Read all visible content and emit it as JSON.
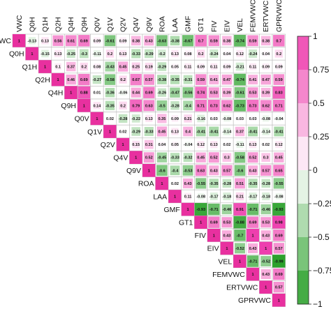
{
  "chart_data": {
    "type": "heatmap",
    "subtype": "correlation-matrix-upper-triangle",
    "variables": [
      "VWC",
      "Q0H",
      "Q1H",
      "Q2H",
      "Q4H",
      "Q9H",
      "Q0V",
      "Q1V",
      "Q2V",
      "Q4V",
      "Q9V",
      "ROA",
      "LAA",
      "GMF",
      "GT1",
      "FIV",
      "EIV",
      "VEL",
      "FEMVWC",
      "ERTVWC",
      "GPRVWC"
    ],
    "matrix": [
      [
        1,
        -0.13,
        0.13,
        0.56,
        0.61,
        0.69,
        0.09,
        -0.61,
        0.09,
        0.38,
        0.43,
        -0.63,
        -0.38,
        -0.67,
        0.7,
        0.59,
        0.38,
        -0.74,
        0.59,
        0.38,
        0.7
      ],
      [
        null,
        1,
        -0.15,
        0.13,
        -0.25,
        -0.3,
        -0.11,
        0.2,
        0.13,
        -0.33,
        -0.29,
        -0.2,
        0.13,
        0.08,
        0.2,
        -0.24,
        0.04,
        0.12,
        -0.24,
        0.04,
        0.2
      ],
      [
        null,
        null,
        1,
        0.1,
        0.37,
        0.2,
        0.08,
        -0.43,
        0.45,
        0.25,
        0.19,
        -0.29,
        0.05,
        0.11,
        0.09,
        0.11,
        0.09,
        -0.21,
        0.11,
        0.09,
        0.09
      ],
      [
        null,
        null,
        null,
        1,
        0.46,
        0.69,
        -0.27,
        -0.58,
        0.2,
        0.67,
        0.57,
        -0.38,
        -0.35,
        -0.31,
        0.59,
        0.41,
        0.47,
        -0.74,
        0.41,
        0.47,
        0.59
      ],
      [
        null,
        null,
        null,
        null,
        1,
        0.88,
        0.01,
        -0.36,
        -0.06,
        0.44,
        0.69,
        -0.26,
        -0.47,
        -0.56,
        0.74,
        0.53,
        0.39,
        -0.61,
        0.53,
        0.39,
        0.83
      ],
      [
        null,
        null,
        null,
        null,
        null,
        1,
        0.14,
        -0.35,
        0.2,
        0.79,
        0.63,
        -0.5,
        -0.28,
        -0.4,
        0.71,
        0.73,
        0.62,
        -0.73,
        0.73,
        0.62,
        0.71
      ],
      [
        null,
        null,
        null,
        null,
        null,
        null,
        1,
        0.02,
        -0.28,
        -0.22,
        0.13,
        0.35,
        0.09,
        0.21,
        -0.16,
        0.03,
        -0.08,
        0.03,
        0.03,
        -0.08,
        -0.04
      ],
      [
        null,
        null,
        null,
        null,
        null,
        null,
        null,
        1,
        0.02,
        -0.29,
        -0.33,
        0.45,
        0.13,
        0.4,
        -0.41,
        -0.41,
        -0.14,
        0.37,
        -0.41,
        -0.14,
        -0.41
      ],
      [
        null,
        null,
        null,
        null,
        null,
        null,
        null,
        null,
        1,
        0.15,
        0.31,
        0.04,
        0.05,
        -0.04,
        0.12,
        0.13,
        0.02,
        -0.11,
        0.13,
        0.02,
        0.12
      ],
      [
        null,
        null,
        null,
        null,
        null,
        null,
        null,
        null,
        null,
        1,
        0.52,
        -0.45,
        -0.33,
        -0.32,
        0.45,
        0.52,
        0.3,
        -0.58,
        0.52,
        0.3,
        0.45
      ],
      [
        null,
        null,
        null,
        null,
        null,
        null,
        null,
        null,
        null,
        null,
        1,
        -0.6,
        -0.4,
        -0.53,
        0.63,
        0.43,
        0.57,
        -0.6,
        0.43,
        0.57,
        0.65
      ],
      [
        null,
        null,
        null,
        null,
        null,
        null,
        null,
        null,
        null,
        null,
        null,
        1,
        0.02,
        0.43,
        -0.55,
        -0.35,
        -0.28,
        0.51,
        -0.35,
        -0.28,
        -0.55
      ],
      [
        null,
        null,
        null,
        null,
        null,
        null,
        null,
        null,
        null,
        null,
        null,
        null,
        1,
        0.11,
        -0.08,
        -0.17,
        -0.18,
        0.21,
        -0.17,
        -0.18,
        -0.08
      ],
      [
        null,
        null,
        null,
        null,
        null,
        null,
        null,
        null,
        null,
        null,
        null,
        null,
        null,
        1,
        -0.93,
        -0.71,
        -0.46,
        0.91,
        -0.71,
        -0.46,
        -0.93
      ],
      [
        null,
        null,
        null,
        null,
        null,
        null,
        null,
        null,
        null,
        null,
        null,
        null,
        null,
        null,
        1,
        0.69,
        0.53,
        -0.88,
        0.69,
        0.53,
        0.98
      ],
      [
        null,
        null,
        null,
        null,
        null,
        null,
        null,
        null,
        null,
        null,
        null,
        null,
        null,
        null,
        null,
        1,
        0.43,
        -0.7,
        1,
        0.43,
        0.69
      ],
      [
        null,
        null,
        null,
        null,
        null,
        null,
        null,
        null,
        null,
        null,
        null,
        null,
        null,
        null,
        null,
        null,
        1,
        -0.52,
        0.43,
        1,
        0.57
      ],
      [
        null,
        null,
        null,
        null,
        null,
        null,
        null,
        null,
        null,
        null,
        null,
        null,
        null,
        null,
        null,
        null,
        null,
        1,
        -0.71,
        -0.52,
        -0.99
      ],
      [
        null,
        null,
        null,
        null,
        null,
        null,
        null,
        null,
        null,
        null,
        null,
        null,
        null,
        null,
        null,
        null,
        null,
        null,
        1,
        0.43,
        0.69
      ],
      [
        null,
        null,
        null,
        null,
        null,
        null,
        null,
        null,
        null,
        null,
        null,
        null,
        null,
        null,
        null,
        null,
        null,
        null,
        null,
        1,
        0.57
      ],
      [
        null,
        null,
        null,
        null,
        null,
        null,
        null,
        null,
        null,
        null,
        null,
        null,
        null,
        null,
        null,
        null,
        null,
        null,
        null,
        null,
        1
      ]
    ],
    "colorbar": {
      "ticks": [
        1,
        0.75,
        0.5,
        0.25,
        0,
        -0.25,
        -0.5,
        -0.75,
        -1
      ],
      "tick_labels": [
        "1",
        "0.75",
        "0.5",
        "0.25",
        "0",
        "−0.25",
        "−0.5",
        "−0.75",
        "−1"
      ],
      "range": [
        -1,
        1
      ],
      "placement": "right"
    },
    "colors": {
      "positive": "#ee3fae",
      "neutral": "#ffffff",
      "negative": "#2aa02a",
      "diagonal": "#e8309f",
      "grid": "#bbbbbb"
    },
    "legend": "right",
    "grid": true
  }
}
